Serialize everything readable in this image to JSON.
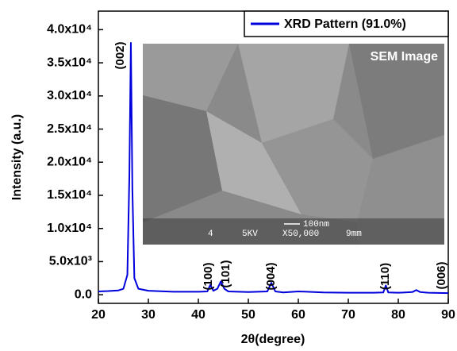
{
  "chart_data": {
    "type": "line",
    "x_label": "2θ(degree)",
    "y_label": "Intensity (a.u.)",
    "x": [
      20,
      22,
      24,
      25,
      25.8,
      26.2,
      26.5,
      26.8,
      27.2,
      28,
      30,
      35,
      40,
      41.8,
      42.4,
      43,
      43.8,
      44.5,
      45.2,
      46,
      50,
      53.8,
      54.6,
      55.4,
      57,
      60,
      65,
      70,
      75,
      77,
      77.5,
      78,
      80,
      82.8,
      83.6,
      84.4,
      86,
      90
    ],
    "series": [
      {
        "name": "XRD Pattern (91.0%)",
        "color": "#0000dd",
        "values": [
          500,
          550,
          650,
          900,
          3000,
          18000,
          38000,
          16000,
          2500,
          900,
          600,
          450,
          450,
          500,
          1500,
          600,
          900,
          2000,
          900,
          500,
          400,
          500,
          1800,
          500,
          350,
          500,
          350,
          300,
          300,
          350,
          1400,
          350,
          300,
          400,
          700,
          400,
          300,
          250
        ]
      }
    ],
    "xlim": [
      20,
      90
    ],
    "xticks": [
      20,
      30,
      40,
      50,
      60,
      70,
      80,
      90
    ],
    "ylim": [
      -1300,
      42800
    ],
    "yticks": [
      {
        "value": 0,
        "label": "0.0"
      },
      {
        "value": 5000,
        "label": "5.0x10³"
      },
      {
        "value": 10000,
        "label": "1.0x10⁴"
      },
      {
        "value": 15000,
        "label": "1.5x10⁴"
      },
      {
        "value": 20000,
        "label": "2.0x10⁴"
      },
      {
        "value": 25000,
        "label": "2.5x10⁴"
      },
      {
        "value": 30000,
        "label": "3.0x10⁴"
      },
      {
        "value": 35000,
        "label": "3.5x10⁴"
      },
      {
        "value": 40000,
        "label": "4.0x10⁴"
      }
    ],
    "legend": "top-right",
    "annotations": [
      "(002)",
      "(100)",
      "(101)",
      "(004)",
      "(110)",
      "(006)"
    ],
    "inset": {
      "label": "SEM Image",
      "scale_bar": "100nm",
      "info": [
        "4",
        "5KV",
        "X50,000",
        "9mm"
      ]
    }
  }
}
